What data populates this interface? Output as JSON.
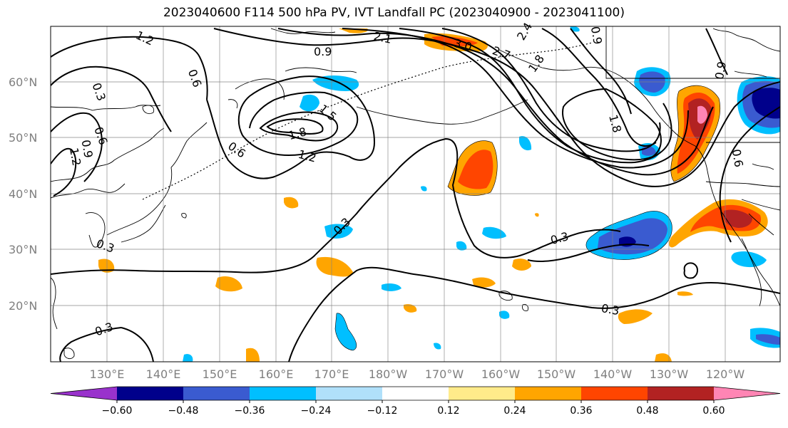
{
  "title": "2023040600 F114 500 hPa PV, IVT Landfall PC (2023040900 - 2023041100)",
  "lat_labels": [
    "60°N",
    "50°N",
    "40°N",
    "30°N",
    "20°N"
  ],
  "lon_labels": [
    "130°E",
    "140°E",
    "150°E",
    "160°E",
    "170°E",
    "180°W",
    "170°W",
    "160°W",
    "150°W",
    "140°W",
    "130°W",
    "120°W"
  ],
  "colorbar": {
    "colors": [
      "#9932cc",
      "#00008b",
      "#3a5bd0",
      "#00bfff",
      "#b0e0fa",
      "#ffffff",
      "#ffeb8a",
      "#ffa500",
      "#ff4500",
      "#b22222",
      "#ff85b4"
    ],
    "tick_labels": [
      "−0.60",
      "−0.48",
      "−0.36",
      "−0.24",
      "−0.12",
      "0.12",
      "0.24",
      "0.36",
      "0.48",
      "0.60"
    ]
  },
  "contour_labels": [
    "1.2",
    "0.9",
    "2.1",
    "3.0",
    "2.7",
    "2.4",
    "1.8",
    "0.9",
    "0.6",
    "0.3",
    "0.6",
    "0.9",
    "1.2",
    "1.5",
    "1.8",
    "1.2",
    "0.6",
    "0.3",
    "0.3",
    "0.3",
    "0.3",
    "0.3",
    "1.8",
    "0.9",
    "0.6"
  ]
}
